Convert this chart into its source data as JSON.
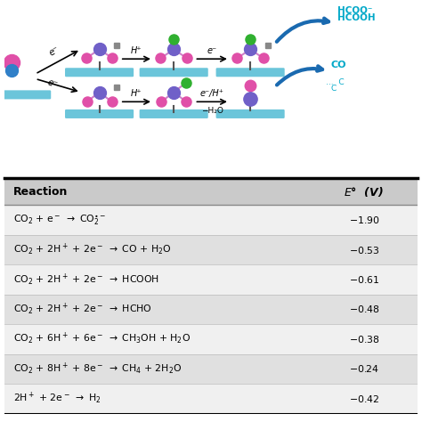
{
  "teal_color": "#5bbfd6",
  "purple_color": "#7060c8",
  "pink_color": "#e050a8",
  "green_color": "#30b030",
  "dark_gray": "#555555",
  "blue_arrow": "#1a6ab0",
  "cyan_text": "#00a8c8",
  "row_texts": [
    [
      "CO$_2$ + e$^-$ $\\rightarrow$ CO$_2^{\\bullet-}$",
      "$-$1.90"
    ],
    [
      "CO$_2$ + 2H$^+$ + 2e$^-$ $\\rightarrow$ CO + H$_2$O",
      "$-$0.53"
    ],
    [
      "CO$_2$ + 2H$^+$ + 2e$^-$ $\\rightarrow$ HCOOH",
      "$-$0.61"
    ],
    [
      "CO$_2$ + 2H$^+$ + 2e$^-$ $\\rightarrow$ HCHO",
      "$-$0.48"
    ],
    [
      "CO$_2$ + 6H$^+$ + 6e$^-$ $\\rightarrow$ CH$_3$OH + H$_2$O",
      "$-$0.38"
    ],
    [
      "CO$_2$ + 8H$^+$ + 8e$^-$ $\\rightarrow$ CH$_4$ + 2H$_2$O",
      "$-$0.24"
    ],
    [
      "2H$^+$ + 2e$^-$ $\\rightarrow$ H$_2$",
      "$-$0.42"
    ]
  ],
  "hcoo_lines": [
    "HCOO⁻",
    "HCOOH"
  ],
  "co_label": "CO",
  "dots_label": "...",
  "header_reaction": "Reaction",
  "header_E": "$E$°  (V)"
}
